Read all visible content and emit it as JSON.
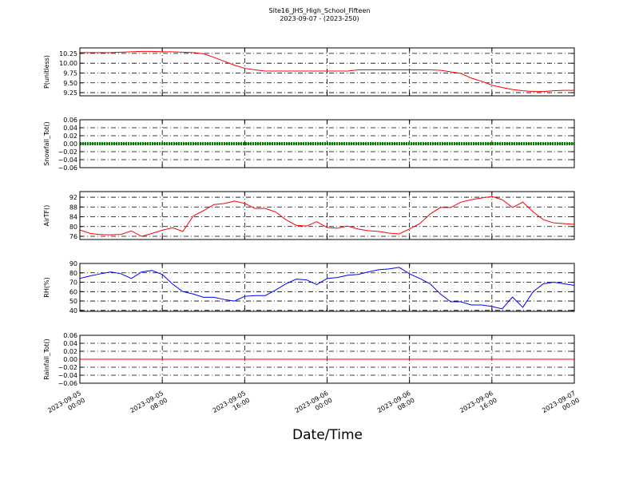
{
  "title": "Site16_JHS_High_School_Fifteen",
  "subtitle": "2023-09-07 - (2023-250)",
  "x_label": "Date/Time",
  "chart_data": [
    {
      "type": "line",
      "y_label": "P(unitless)",
      "grid": true,
      "x": [
        "2023-09-05 00:00",
        "2023-09-05 01:00",
        "2023-09-05 02:00",
        "2023-09-05 03:00",
        "2023-09-05 04:00",
        "2023-09-05 05:00",
        "2023-09-05 06:00",
        "2023-09-05 07:00",
        "2023-09-05 08:00",
        "2023-09-05 09:00",
        "2023-09-05 10:00",
        "2023-09-05 11:00",
        "2023-09-05 12:00",
        "2023-09-05 13:00",
        "2023-09-05 14:00",
        "2023-09-05 15:00",
        "2023-09-05 16:00",
        "2023-09-05 17:00",
        "2023-09-05 18:00",
        "2023-09-05 19:00",
        "2023-09-05 20:00",
        "2023-09-05 21:00",
        "2023-09-05 22:00",
        "2023-09-05 23:00",
        "2023-09-06 00:00",
        "2023-09-06 01:00",
        "2023-09-06 02:00",
        "2023-09-06 03:00",
        "2023-09-06 04:00",
        "2023-09-06 05:00",
        "2023-09-06 06:00",
        "2023-09-06 07:00",
        "2023-09-06 08:00",
        "2023-09-06 09:00",
        "2023-09-06 10:00",
        "2023-09-06 11:00",
        "2023-09-06 12:00",
        "2023-09-06 13:00",
        "2023-09-06 14:00",
        "2023-09-06 15:00",
        "2023-09-06 16:00",
        "2023-09-06 17:00",
        "2023-09-06 18:00",
        "2023-09-06 19:00",
        "2023-09-06 20:00",
        "2023-09-06 21:00",
        "2023-09-06 22:00",
        "2023-09-06 23:00",
        "2023-09-07 00:00"
      ],
      "series": [
        {
          "color": "#ff0000",
          "values": [
            10.27,
            10.27,
            10.27,
            10.27,
            10.28,
            10.29,
            10.3,
            10.3,
            10.29,
            10.29,
            10.28,
            10.27,
            10.24,
            10.15,
            10.05,
            9.95,
            9.87,
            9.83,
            9.8,
            9.8,
            9.8,
            9.8,
            9.8,
            9.8,
            9.8,
            9.8,
            9.8,
            9.83,
            9.83,
            9.83,
            9.83,
            9.83,
            9.83,
            9.83,
            9.83,
            9.82,
            9.78,
            9.74,
            9.62,
            9.54,
            9.44,
            9.38,
            9.33,
            9.3,
            9.28,
            9.28,
            9.3,
            9.31,
            9.31
          ]
        }
      ],
      "xlim": [
        "2023-09-05 00:00",
        "2023-09-07 00:00"
      ],
      "xticks": [
        "2023-09-05 00:00",
        "2023-09-05 08:00",
        "2023-09-05 16:00",
        "2023-09-06 00:00",
        "2023-09-06 08:00",
        "2023-09-06 16:00",
        "2023-09-07 00:00"
      ],
      "ylim": [
        9.17,
        10.39
      ],
      "yticks": [
        9.25,
        {
          "value": 9.5,
          "label": "9.50"
        },
        9.75,
        {
          "value": 10,
          "label": "10.00"
        },
        10.25
      ]
    },
    {
      "type": "line",
      "y_label": "Snowfall_Tot()",
      "grid": true,
      "linewidth": 4,
      "dotted": true,
      "x": [
        "2023-09-05 00:00",
        "2023-09-05 01:00",
        "2023-09-05 02:00",
        "2023-09-05 03:00",
        "2023-09-05 04:00",
        "2023-09-05 05:00",
        "2023-09-05 06:00",
        "2023-09-05 07:00",
        "2023-09-05 08:00",
        "2023-09-05 09:00",
        "2023-09-05 10:00",
        "2023-09-05 11:00",
        "2023-09-05 12:00",
        "2023-09-05 13:00",
        "2023-09-05 14:00",
        "2023-09-05 15:00",
        "2023-09-05 16:00",
        "2023-09-05 17:00",
        "2023-09-05 18:00",
        "2023-09-05 19:00",
        "2023-09-05 20:00",
        "2023-09-05 21:00",
        "2023-09-05 22:00",
        "2023-09-05 23:00",
        "2023-09-06 00:00",
        "2023-09-06 01:00",
        "2023-09-06 02:00",
        "2023-09-06 03:00",
        "2023-09-06 04:00",
        "2023-09-06 05:00",
        "2023-09-06 06:00",
        "2023-09-06 07:00",
        "2023-09-06 08:00",
        "2023-09-06 09:00",
        "2023-09-06 10:00",
        "2023-09-06 11:00",
        "2023-09-06 12:00",
        "2023-09-06 13:00",
        "2023-09-06 14:00",
        "2023-09-06 15:00",
        "2023-09-06 16:00",
        "2023-09-06 17:00",
        "2023-09-06 18:00",
        "2023-09-06 19:00",
        "2023-09-06 20:00",
        "2023-09-06 21:00",
        "2023-09-06 22:00",
        "2023-09-06 23:00",
        "2023-09-07 00:00"
      ],
      "series": [
        {
          "color": "#008000",
          "values": [
            0,
            0,
            0,
            0,
            0,
            0,
            0,
            0,
            0,
            0,
            0,
            0,
            0,
            0,
            0,
            0,
            0,
            0,
            0,
            0,
            0,
            0,
            0,
            0,
            0,
            0,
            0,
            0,
            0,
            0,
            0,
            0,
            0,
            0,
            0,
            0,
            0,
            0,
            0,
            0,
            0,
            0,
            0,
            0,
            0,
            0,
            0,
            0,
            0
          ]
        }
      ],
      "xlim": [
        "2023-09-05 00:00",
        "2023-09-07 00:00"
      ],
      "xticks": [
        "2023-09-05 00:00",
        "2023-09-05 08:00",
        "2023-09-05 16:00",
        "2023-09-06 00:00",
        "2023-09-06 08:00",
        "2023-09-06 16:00",
        "2023-09-07 00:00"
      ],
      "ylim": [
        -0.06,
        0.06
      ],
      "yticks": [
        {
          "value": -0.06,
          "label": "−0.06"
        },
        {
          "value": -0.04,
          "label": "−0.04"
        },
        {
          "value": -0.02,
          "label": "−0.02"
        },
        {
          "value": 0,
          "label": "0.00"
        },
        0.02,
        0.04,
        0.06
      ]
    },
    {
      "type": "line",
      "y_label": "AirTF()",
      "grid": true,
      "x": [
        "2023-09-05 00:00",
        "2023-09-05 01:00",
        "2023-09-05 02:00",
        "2023-09-05 03:00",
        "2023-09-05 04:00",
        "2023-09-05 05:00",
        "2023-09-05 06:00",
        "2023-09-05 07:00",
        "2023-09-05 08:00",
        "2023-09-05 09:00",
        "2023-09-05 10:00",
        "2023-09-05 11:00",
        "2023-09-05 12:00",
        "2023-09-05 13:00",
        "2023-09-05 14:00",
        "2023-09-05 15:00",
        "2023-09-05 16:00",
        "2023-09-05 17:00",
        "2023-09-05 18:00",
        "2023-09-05 19:00",
        "2023-09-05 20:00",
        "2023-09-05 21:00",
        "2023-09-05 22:00",
        "2023-09-05 23:00",
        "2023-09-06 00:00",
        "2023-09-06 01:00",
        "2023-09-06 02:00",
        "2023-09-06 03:00",
        "2023-09-06 04:00",
        "2023-09-06 05:00",
        "2023-09-06 06:00",
        "2023-09-06 07:00",
        "2023-09-06 08:00",
        "2023-09-06 09:00",
        "2023-09-06 10:00",
        "2023-09-06 11:00",
        "2023-09-06 12:00",
        "2023-09-06 13:00",
        "2023-09-06 14:00",
        "2023-09-06 15:00",
        "2023-09-06 16:00",
        "2023-09-06 17:00",
        "2023-09-06 18:00",
        "2023-09-06 19:00",
        "2023-09-06 20:00",
        "2023-09-06 21:00",
        "2023-09-06 22:00",
        "2023-09-06 23:00",
        "2023-09-07 00:00"
      ],
      "series": [
        {
          "color": "#ff0000",
          "values": [
            78.6,
            77.2,
            76.7,
            76.6,
            76.8,
            78.2,
            76,
            77.2,
            78.5,
            79.5,
            78,
            84.3,
            86.5,
            89,
            89.4,
            90.4,
            89.5,
            87.4,
            87.4,
            86,
            82.8,
            80.5,
            80.2,
            82,
            79.6,
            79.3,
            80.2,
            79,
            78.3,
            78,
            77.3,
            77,
            79,
            81.2,
            85.1,
            87.8,
            87.8,
            90,
            91,
            91.7,
            92.3,
            91,
            87.8,
            90,
            86,
            82.8,
            81.5,
            81.2,
            80.9
          ]
        }
      ],
      "xlim": [
        "2023-09-05 00:00",
        "2023-09-07 00:00"
      ],
      "xticks": [
        "2023-09-05 00:00",
        "2023-09-05 08:00",
        "2023-09-05 16:00",
        "2023-09-06 00:00",
        "2023-09-06 08:00",
        "2023-09-06 16:00",
        "2023-09-07 00:00"
      ],
      "ylim": [
        74.7,
        94.3
      ],
      "yticks": [
        76,
        80,
        84,
        88,
        92
      ]
    },
    {
      "type": "line",
      "y_label": "RH(%)",
      "grid": true,
      "x": [
        "2023-09-05 00:00",
        "2023-09-05 01:00",
        "2023-09-05 02:00",
        "2023-09-05 03:00",
        "2023-09-05 04:00",
        "2023-09-05 05:00",
        "2023-09-05 06:00",
        "2023-09-05 07:00",
        "2023-09-05 08:00",
        "2023-09-05 09:00",
        "2023-09-05 10:00",
        "2023-09-05 11:00",
        "2023-09-05 12:00",
        "2023-09-05 13:00",
        "2023-09-05 14:00",
        "2023-09-05 15:00",
        "2023-09-05 16:00",
        "2023-09-05 17:00",
        "2023-09-05 18:00",
        "2023-09-05 19:00",
        "2023-09-05 20:00",
        "2023-09-05 21:00",
        "2023-09-05 22:00",
        "2023-09-05 23:00",
        "2023-09-06 00:00",
        "2023-09-06 01:00",
        "2023-09-06 02:00",
        "2023-09-06 03:00",
        "2023-09-06 04:00",
        "2023-09-06 05:00",
        "2023-09-06 06:00",
        "2023-09-06 07:00",
        "2023-09-06 08:00",
        "2023-09-06 09:00",
        "2023-09-06 10:00",
        "2023-09-06 11:00",
        "2023-09-06 12:00",
        "2023-09-06 13:00",
        "2023-09-06 14:00",
        "2023-09-06 15:00",
        "2023-09-06 16:00",
        "2023-09-06 17:00",
        "2023-09-06 18:00",
        "2023-09-06 19:00",
        "2023-09-06 20:00",
        "2023-09-06 21:00",
        "2023-09-06 22:00",
        "2023-09-06 23:00",
        "2023-09-07 00:00"
      ],
      "series": [
        {
          "color": "#0000ff",
          "values": [
            74,
            76.7,
            79,
            81,
            79,
            74,
            81,
            82.5,
            78.3,
            68,
            60,
            57.5,
            54,
            54,
            51.7,
            50,
            55,
            55.8,
            55.8,
            61.7,
            68.3,
            73.3,
            72.5,
            67.5,
            74,
            75,
            77.5,
            78.3,
            81,
            83.3,
            84.2,
            85.8,
            79,
            74,
            68.3,
            57.5,
            49.2,
            49.2,
            45.8,
            45.8,
            44.2,
            41.7,
            54.2,
            43.3,
            60,
            68.3,
            70,
            68.3,
            66.7
          ]
        }
      ],
      "xlim": [
        "2023-09-05 00:00",
        "2023-09-07 00:00"
      ],
      "xticks": [
        "2023-09-05 00:00",
        "2023-09-05 08:00",
        "2023-09-05 16:00",
        "2023-09-06 00:00",
        "2023-09-06 08:00",
        "2023-09-06 16:00",
        "2023-09-07 00:00"
      ],
      "ylim": [
        39,
        90
      ],
      "yticks": [
        40,
        50,
        60,
        70,
        80,
        90
      ]
    },
    {
      "type": "line",
      "y_label": "Rainfall_Tot()",
      "grid": true,
      "x": [
        "2023-09-05 00:00",
        "2023-09-05 01:00",
        "2023-09-05 02:00",
        "2023-09-05 03:00",
        "2023-09-05 04:00",
        "2023-09-05 05:00",
        "2023-09-05 06:00",
        "2023-09-05 07:00",
        "2023-09-05 08:00",
        "2023-09-05 09:00",
        "2023-09-05 10:00",
        "2023-09-05 11:00",
        "2023-09-05 12:00",
        "2023-09-05 13:00",
        "2023-09-05 14:00",
        "2023-09-05 15:00",
        "2023-09-05 16:00",
        "2023-09-05 17:00",
        "2023-09-05 18:00",
        "2023-09-05 19:00",
        "2023-09-05 20:00",
        "2023-09-05 21:00",
        "2023-09-05 22:00",
        "2023-09-05 23:00",
        "2023-09-06 00:00",
        "2023-09-06 01:00",
        "2023-09-06 02:00",
        "2023-09-06 03:00",
        "2023-09-06 04:00",
        "2023-09-06 05:00",
        "2023-09-06 06:00",
        "2023-09-06 07:00",
        "2023-09-06 08:00",
        "2023-09-06 09:00",
        "2023-09-06 10:00",
        "2023-09-06 11:00",
        "2023-09-06 12:00",
        "2023-09-06 13:00",
        "2023-09-06 14:00",
        "2023-09-06 15:00",
        "2023-09-06 16:00",
        "2023-09-06 17:00",
        "2023-09-06 18:00",
        "2023-09-06 19:00",
        "2023-09-06 20:00",
        "2023-09-06 21:00",
        "2023-09-06 22:00",
        "2023-09-06 23:00",
        "2023-09-07 00:00"
      ],
      "series": [
        {
          "color": "#ff0000",
          "values": [
            0,
            0,
            0,
            0,
            0,
            0,
            0,
            0,
            0,
            0,
            0,
            0,
            0,
            0,
            0,
            0,
            0,
            0,
            0,
            0,
            0,
            0,
            0,
            0,
            0,
            0,
            0,
            0,
            0,
            0,
            0,
            0,
            0,
            0,
            0,
            0,
            0,
            0,
            0,
            0,
            0,
            0,
            0,
            0,
            0,
            0,
            0,
            0,
            0
          ]
        }
      ],
      "xlim": [
        "2023-09-05 00:00",
        "2023-09-07 00:00"
      ],
      "xticks": [
        {
          "value": "2023-09-05 00:00",
          "label": [
            "2023-09-05",
            "00:00"
          ]
        },
        {
          "value": "2023-09-05 08:00",
          "label": [
            "2023-09-05",
            "08:00"
          ]
        },
        {
          "value": "2023-09-05 16:00",
          "label": [
            "2023-09-05",
            "16:00"
          ]
        },
        {
          "value": "2023-09-06 00:00",
          "label": [
            "2023-09-06",
            "00:00"
          ]
        },
        {
          "value": "2023-09-06 08:00",
          "label": [
            "2023-09-06",
            "08:00"
          ]
        },
        {
          "value": "2023-09-06 16:00",
          "label": [
            "2023-09-06",
            "16:00"
          ]
        },
        {
          "value": "2023-09-07 00:00",
          "label": [
            "2023-09-07",
            "00:00"
          ]
        }
      ],
      "ylim": [
        -0.06,
        0.06
      ],
      "yticks": [
        {
          "value": -0.06,
          "label": "−0.06"
        },
        {
          "value": -0.04,
          "label": "−0.04"
        },
        {
          "value": -0.02,
          "label": "−0.02"
        },
        {
          "value": 0,
          "label": "0.00"
        },
        0.02,
        0.04,
        0.06
      ]
    }
  ]
}
